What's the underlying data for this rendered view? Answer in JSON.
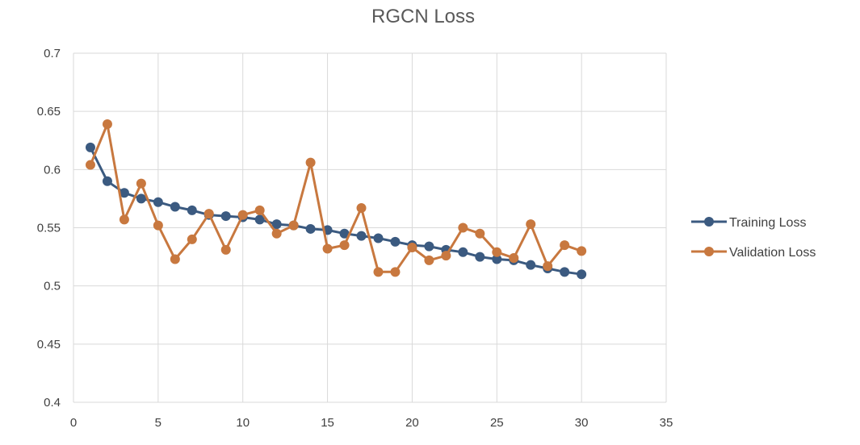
{
  "chart_data": {
    "type": "line",
    "title": "RGCN Loss",
    "xlabel": "",
    "ylabel": "",
    "xlim": [
      0,
      35
    ],
    "ylim": [
      0.4,
      0.7
    ],
    "x_ticks": [
      "0",
      "5",
      "10",
      "15",
      "20",
      "25",
      "30",
      "35"
    ],
    "y_ticks": [
      "0.4",
      "0.45",
      "0.5",
      "0.55",
      "0.6",
      "0.65",
      "0.7"
    ],
    "grid": true,
    "legend_position": "right",
    "x": [
      1,
      2,
      3,
      4,
      5,
      6,
      7,
      8,
      9,
      10,
      11,
      12,
      13,
      14,
      15,
      16,
      17,
      18,
      19,
      20,
      21,
      22,
      23,
      24,
      25,
      26,
      27,
      28,
      29,
      30
    ],
    "series": [
      {
        "name": "Training Loss",
        "color": "#3b5a80",
        "values": [
          0.619,
          0.59,
          0.58,
          0.575,
          0.572,
          0.568,
          0.565,
          0.561,
          0.56,
          0.559,
          0.557,
          0.553,
          0.552,
          0.549,
          0.548,
          0.545,
          0.543,
          0.541,
          0.538,
          0.535,
          0.534,
          0.531,
          0.529,
          0.525,
          0.523,
          0.522,
          0.518,
          0.515,
          0.512,
          0.51
        ]
      },
      {
        "name": "Validation Loss",
        "color": "#c8783f",
        "values": [
          0.604,
          0.639,
          0.557,
          0.588,
          0.552,
          0.523,
          0.54,
          0.562,
          0.531,
          0.561,
          0.565,
          0.545,
          0.552,
          0.606,
          0.532,
          0.535,
          0.567,
          0.512,
          0.512,
          0.533,
          0.522,
          0.526,
          0.55,
          0.545,
          0.529,
          0.524,
          0.553,
          0.517,
          0.535,
          0.53
        ]
      }
    ]
  }
}
